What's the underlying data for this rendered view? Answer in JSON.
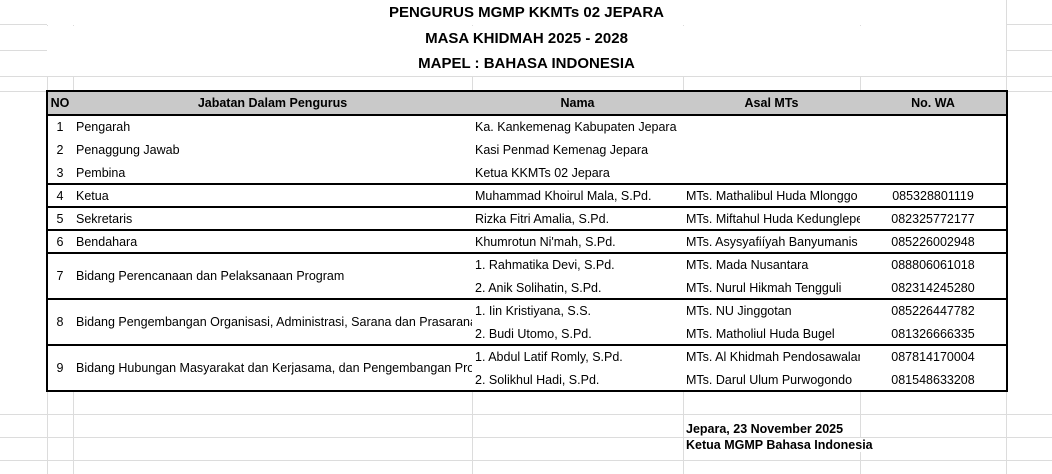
{
  "titles": [
    "PENGURUS MGMP KKMTs 02 JEPARA",
    "MASA KHIDMAH 2025 - 2028",
    "MAPEL : BAHASA INDONESIA"
  ],
  "headers": [
    "NO",
    "Jabatan Dalam Pengurus",
    "Nama",
    "Asal MTs",
    "No. WA"
  ],
  "rows": [
    {
      "no": "1",
      "jabatan": "Pengarah",
      "members": [
        {
          "nama": "Ka. Kankemenag Kabupaten Jepara",
          "asal": "",
          "wa": ""
        }
      ]
    },
    {
      "no": "2",
      "jabatan": "Penaggung Jawab",
      "members": [
        {
          "nama": "Kasi Penmad Kemenag Jepara",
          "asal": "",
          "wa": ""
        }
      ]
    },
    {
      "no": "3",
      "jabatan": "Pembina",
      "members": [
        {
          "nama": "Ketua KKMTs 02 Jepara",
          "asal": "",
          "wa": ""
        }
      ]
    },
    {
      "no": "4",
      "jabatan": "Ketua",
      "members": [
        {
          "nama": "Muhammad Khoirul Mala, S.Pd.",
          "asal": "MTs. Mathalibul Huda Mlonggo",
          "wa": "085328801119"
        }
      ]
    },
    {
      "no": "5",
      "jabatan": "Sekretaris",
      "members": [
        {
          "nama": "Rizka Fitri Amalia, S.Pd.",
          "asal": "MTs. Miftahul Huda Kedungleper",
          "wa": "082325772177"
        }
      ]
    },
    {
      "no": "6",
      "jabatan": "Bendahara",
      "members": [
        {
          "nama": "Khumrotun Ni'mah, S.Pd.",
          "asal": "MTs. Asysyafiíyah Banyumanis",
          "wa": "085226002948"
        }
      ]
    },
    {
      "no": "7",
      "jabatan": "Bidang Perencanaan dan Pelaksanaan Program",
      "members": [
        {
          "nama": "1. Rahmatika Devi, S.Pd.",
          "asal": "MTs. Mada Nusantara",
          "wa": "088806061018"
        },
        {
          "nama": "2. Anik Solihatin, S.Pd.",
          "asal": "MTs. Nurul Hikmah Tengguli",
          "wa": "082314245280"
        }
      ]
    },
    {
      "no": "8",
      "jabatan": "Bidang Pengembangan Organisasi, Administrasi, Sarana dan Prasarana",
      "members": [
        {
          "nama": "1. Iin Kristiyana, S.S.",
          "asal": "MTs. NU Jinggotan",
          "wa": "085226447782"
        },
        {
          "nama": "2. Budi Utomo, S.Pd.",
          "asal": "MTs. Matholiul Huda Bugel",
          "wa": "081326666335"
        }
      ]
    },
    {
      "no": "9",
      "jabatan": "Bidang Hubungan Masyarakat dan Kerjasama, dan Pengembangan Profesi",
      "members": [
        {
          "nama": "1. Abdul Latif Romly, S.Pd.",
          "asal": "MTs. Al Khidmah Pendosawalan",
          "wa": "087814170004"
        },
        {
          "nama": "2. Solikhul Hadi, S.Pd.",
          "asal": "MTs. Darul Ulum Purwogondo",
          "wa": "081548633208"
        }
      ]
    }
  ],
  "footer": {
    "place_date": "Jepara, 23 November 2025",
    "signer": "Ketua MGMP Bahasa Indonesia"
  }
}
